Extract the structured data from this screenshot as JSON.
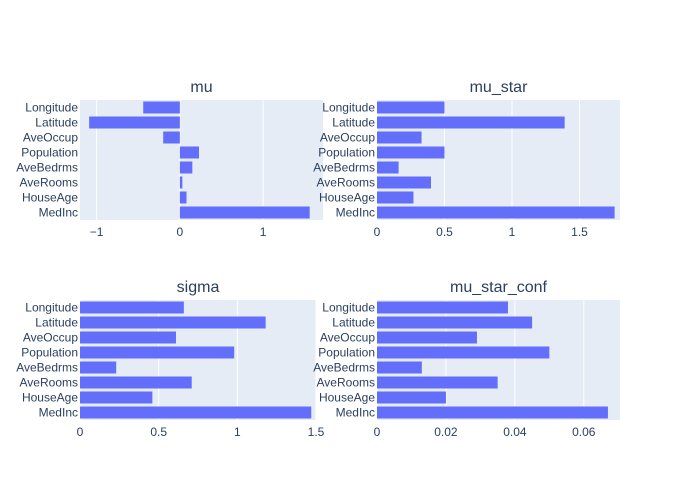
{
  "chart_data": [
    {
      "type": "bar",
      "orientation": "horizontal",
      "title": "mu",
      "categories": [
        "MedInc",
        "HouseAge",
        "AveRooms",
        "AveBedrms",
        "Population",
        "AveOccup",
        "Latitude",
        "Longitude"
      ],
      "values": [
        1.56,
        0.08,
        0.03,
        0.15,
        0.23,
        -0.2,
        -1.09,
        -0.44
      ],
      "xlim": [
        -1.2,
        1.72
      ],
      "xticks": [
        -1,
        0,
        1
      ],
      "tick_labels": [
        "−1",
        "0",
        "1"
      ],
      "xlabel": "",
      "ylabel": "",
      "bar_color": "#636efa",
      "grid": true
    },
    {
      "type": "bar",
      "orientation": "horizontal",
      "title": "mu_star",
      "categories": [
        "MedInc",
        "HouseAge",
        "AveRooms",
        "AveBedrms",
        "Population",
        "AveOccup",
        "Latitude",
        "Longitude"
      ],
      "values": [
        1.76,
        0.27,
        0.4,
        0.16,
        0.5,
        0.33,
        1.39,
        0.5
      ],
      "xlim": [
        0,
        1.8
      ],
      "xticks": [
        0,
        0.5,
        1,
        1.5
      ],
      "tick_labels": [
        "0",
        "0.5",
        "1",
        "1.5"
      ],
      "xlabel": "",
      "ylabel": "",
      "bar_color": "#636efa",
      "grid": true
    },
    {
      "type": "bar",
      "orientation": "horizontal",
      "title": "sigma",
      "categories": [
        "MedInc",
        "HouseAge",
        "AveRooms",
        "AveBedrms",
        "Population",
        "AveOccup",
        "Latitude",
        "Longitude"
      ],
      "values": [
        1.47,
        0.46,
        0.71,
        0.23,
        0.98,
        0.61,
        1.18,
        0.66
      ],
      "xlim": [
        0,
        1.5
      ],
      "xticks": [
        0,
        0.5,
        1,
        1.5
      ],
      "tick_labels": [
        "0",
        "0.5",
        "1",
        "1.5"
      ],
      "xlabel": "",
      "ylabel": "",
      "bar_color": "#636efa",
      "grid": true
    },
    {
      "type": "bar",
      "orientation": "horizontal",
      "title": "mu_star_conf",
      "categories": [
        "MedInc",
        "HouseAge",
        "AveRooms",
        "AveBedrms",
        "Population",
        "AveOccup",
        "Latitude",
        "Longitude"
      ],
      "values": [
        0.067,
        0.02,
        0.035,
        0.013,
        0.05,
        0.029,
        0.045,
        0.038
      ],
      "xlim": [
        0,
        0.0705
      ],
      "xticks": [
        0,
        0.02,
        0.04,
        0.06
      ],
      "tick_labels": [
        "0",
        "0.02",
        "0.04",
        "0.06"
      ],
      "xlabel": "",
      "ylabel": "",
      "bar_color": "#636efa",
      "grid": true
    }
  ],
  "colors": {
    "plot_background": "#e5ecf6",
    "gridline": "#ffffff",
    "text": "#2a3f5f",
    "bar": "#636efa"
  }
}
